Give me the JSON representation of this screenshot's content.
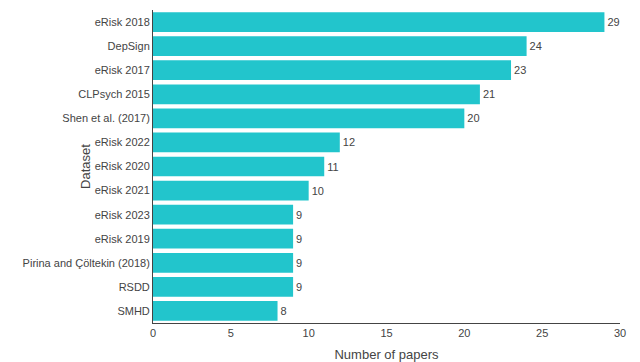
{
  "chart_data": {
    "type": "bar",
    "orientation": "horizontal",
    "categories": [
      "SMHD",
      "RSDD",
      "Pirina and Çöltekin (2018)",
      "eRisk 2019",
      "eRisk 2023",
      "eRisk 2021",
      "eRisk 2020",
      "eRisk 2022",
      "Shen et al. (2017)",
      "CLPsych 2015",
      "eRisk 2017",
      "DepSign",
      "eRisk 2018"
    ],
    "values": [
      8,
      9,
      9,
      9,
      9,
      10,
      11,
      12,
      20,
      21,
      23,
      24,
      29
    ],
    "color": "#22C5CC",
    "xlabel": "Number of papers",
    "ylabel": "Dataset",
    "xlim": [
      0,
      30
    ],
    "xticks": [
      0,
      5,
      10,
      15,
      20,
      25,
      30
    ],
    "data_labels": true,
    "grid": false
  }
}
